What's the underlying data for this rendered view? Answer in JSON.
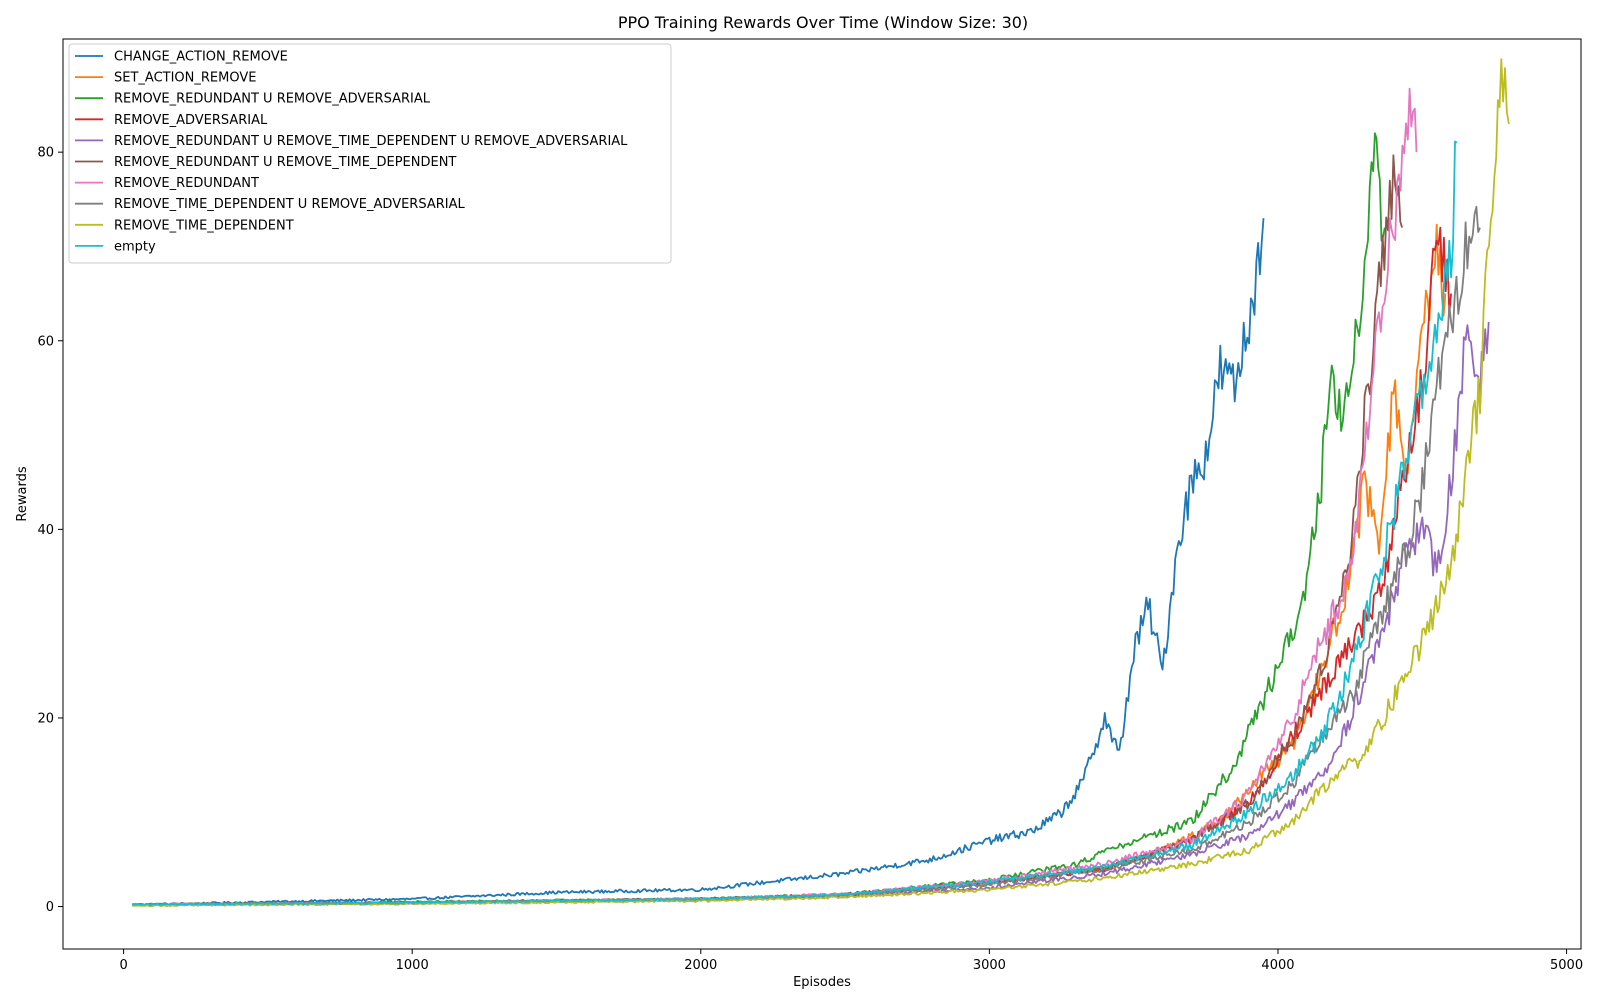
{
  "chart_data": {
    "type": "line",
    "title": "PPO Training Rewards Over Time (Window Size: 30)",
    "xlabel": "Episodes",
    "ylabel": "Rewards",
    "xlim": [
      -210,
      5050
    ],
    "ylim": [
      -4.5,
      92
    ],
    "xticks": [
      0,
      1000,
      2000,
      3000,
      4000,
      5000
    ],
    "yticks": [
      0,
      20,
      40,
      60,
      80
    ],
    "grid": false,
    "legend_position": "top-left",
    "series": [
      {
        "name": "CHANGE_ACTION_REMOVE",
        "color": "#1f77b4",
        "x": [
          30,
          500,
          1000,
          1500,
          2000,
          2200,
          2500,
          2800,
          3000,
          3150,
          3250,
          3320,
          3400,
          3450,
          3500,
          3550,
          3600,
          3650,
          3700,
          3750,
          3800,
          3850,
          3900,
          3950
        ],
        "y": [
          0.2,
          0.5,
          0.8,
          1.5,
          1.8,
          2.5,
          3.5,
          5,
          7,
          8,
          10,
          13,
          20,
          16,
          27,
          32,
          25,
          38,
          45,
          48,
          57,
          55,
          62,
          73
        ]
      },
      {
        "name": "SET_ACTION_REMOVE",
        "color": "#ff7f0e",
        "x": [
          30,
          1000,
          2000,
          2500,
          3000,
          3400,
          3600,
          3800,
          3950,
          4050,
          4150,
          4250,
          4300,
          4350,
          4400,
          4450,
          4500,
          4550,
          4580
        ],
        "y": [
          0.2,
          0.4,
          0.8,
          1.2,
          2.5,
          4,
          6,
          9,
          14,
          17,
          25,
          35,
          45,
          38,
          55,
          45,
          60,
          70,
          65
        ]
      },
      {
        "name": "REMOVE_REDUNDANT U REMOVE_ADVERSARIAL",
        "color": "#2ca02c",
        "x": [
          30,
          1000,
          2000,
          2500,
          3000,
          3300,
          3500,
          3700,
          3850,
          3950,
          4050,
          4100,
          4150,
          4180,
          4200,
          4250,
          4300,
          4330,
          4370
        ],
        "y": [
          0.2,
          0.5,
          0.8,
          1.3,
          2.8,
          4.5,
          7,
          9,
          15,
          22,
          29,
          35,
          45,
          58,
          52,
          55,
          67,
          80,
          72
        ]
      },
      {
        "name": "REMOVE_ADVERSARIAL",
        "color": "#d62728",
        "x": [
          30,
          1000,
          2000,
          2500,
          3000,
          3400,
          3700,
          3900,
          4050,
          4150,
          4250,
          4350,
          4400,
          4450,
          4500,
          4550,
          4600
        ],
        "y": [
          0.2,
          0.4,
          0.8,
          1.3,
          2.6,
          4,
          7,
          11,
          18,
          23,
          28,
          33,
          40,
          48,
          55,
          72,
          65
        ]
      },
      {
        "name": "REMOVE_REDUNDANT U REMOVE_TIME_DEPENDENT U REMOVE_ADVERSARIAL",
        "color": "#9467bd",
        "x": [
          30,
          1000,
          2000,
          2500,
          3000,
          3400,
          3700,
          3900,
          4050,
          4200,
          4350,
          4450,
          4500,
          4550,
          4600,
          4650,
          4700,
          4730
        ],
        "y": [
          0.2,
          0.4,
          0.7,
          1.1,
          2.0,
          3.5,
          5.5,
          7.5,
          11,
          16,
          28,
          38,
          40,
          36,
          45,
          60,
          55,
          62
        ]
      },
      {
        "name": "REMOVE_REDUNDANT U REMOVE_TIME_DEPENDENT",
        "color": "#8c564b",
        "x": [
          30,
          1000,
          2000,
          2500,
          3000,
          3400,
          3700,
          3900,
          4050,
          4150,
          4250,
          4300,
          4350,
          4400,
          4430
        ],
        "y": [
          0.2,
          0.4,
          0.8,
          1.2,
          2.5,
          4,
          7,
          11,
          18,
          25,
          38,
          52,
          65,
          76,
          72
        ]
      },
      {
        "name": "REMOVE_REDUNDANT",
        "color": "#e377c2",
        "x": [
          30,
          1000,
          2000,
          2500,
          3000,
          3400,
          3700,
          3900,
          4050,
          4150,
          4250,
          4300,
          4350,
          4400,
          4450,
          4480
        ],
        "y": [
          0.2,
          0.4,
          0.8,
          1.3,
          2.7,
          4.5,
          7,
          12,
          20,
          28,
          35,
          48,
          62,
          72,
          84,
          80
        ]
      },
      {
        "name": "REMOVE_TIME_DEPENDENT U REMOVE_ADVERSARIAL",
        "color": "#7f7f7f",
        "x": [
          30,
          1000,
          2000,
          2500,
          3000,
          3400,
          3700,
          3900,
          4050,
          4150,
          4250,
          4350,
          4450,
          4500,
          4550,
          4600,
          4650,
          4700
        ],
        "y": [
          0.2,
          0.4,
          0.7,
          1.2,
          2.3,
          4,
          6,
          9,
          13,
          18,
          22,
          30,
          38,
          45,
          55,
          62,
          70,
          72
        ]
      },
      {
        "name": "REMOVE_TIME_DEPENDENT",
        "color": "#bcbd22",
        "x": [
          30,
          1000,
          2000,
          2500,
          3000,
          3400,
          3700,
          3900,
          4050,
          4200,
          4300,
          4400,
          4500,
          4600,
          4700,
          4750,
          4780,
          4800
        ],
        "y": [
          0.1,
          0.3,
          0.6,
          1.0,
          1.8,
          3.0,
          4.5,
          6,
          9,
          14,
          16,
          22,
          28,
          36,
          55,
          80,
          88,
          83
        ]
      },
      {
        "name": "empty",
        "color": "#17becf",
        "x": [
          30,
          1000,
          2000,
          2500,
          3000,
          3400,
          3700,
          3900,
          4050,
          4150,
          4250,
          4350,
          4450,
          4500,
          4550,
          4600,
          4620
        ],
        "y": [
          0.2,
          0.4,
          0.8,
          1.3,
          2.6,
          4.2,
          6.5,
          10,
          14,
          18,
          25,
          35,
          48,
          55,
          62,
          70,
          81
        ]
      }
    ]
  }
}
